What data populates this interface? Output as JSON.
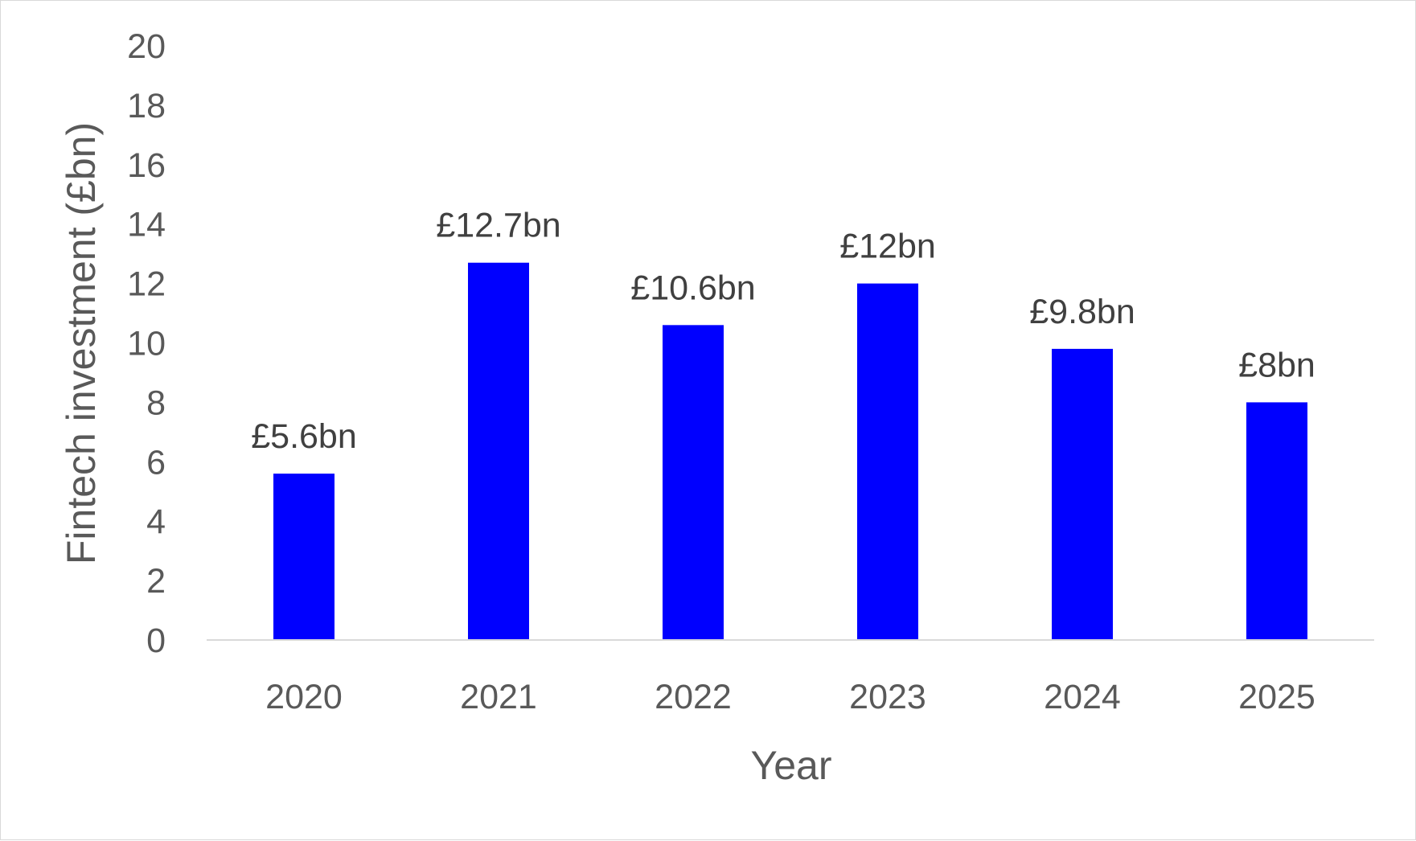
{
  "chart_data": {
    "type": "bar",
    "title": "",
    "xlabel": "Year",
    "ylabel": "Fintech investment (£bn)",
    "categories": [
      "2020",
      "2021",
      "2022",
      "2023",
      "2024",
      "2025"
    ],
    "values": [
      5.6,
      12.7,
      10.6,
      12,
      9.8,
      8
    ],
    "data_labels": [
      "£5.6bn",
      "£12.7bn",
      "£10.6bn",
      "£12bn",
      "£9.8bn",
      "£8bn"
    ],
    "ylim": [
      0,
      20
    ],
    "yticks": [
      0,
      2,
      4,
      6,
      8,
      10,
      12,
      14,
      16,
      18,
      20
    ],
    "grid": false,
    "legend": "none",
    "bar_color": "#0000FF",
    "axis_line_color": "#D9D9D9",
    "text_color": "#595959"
  }
}
